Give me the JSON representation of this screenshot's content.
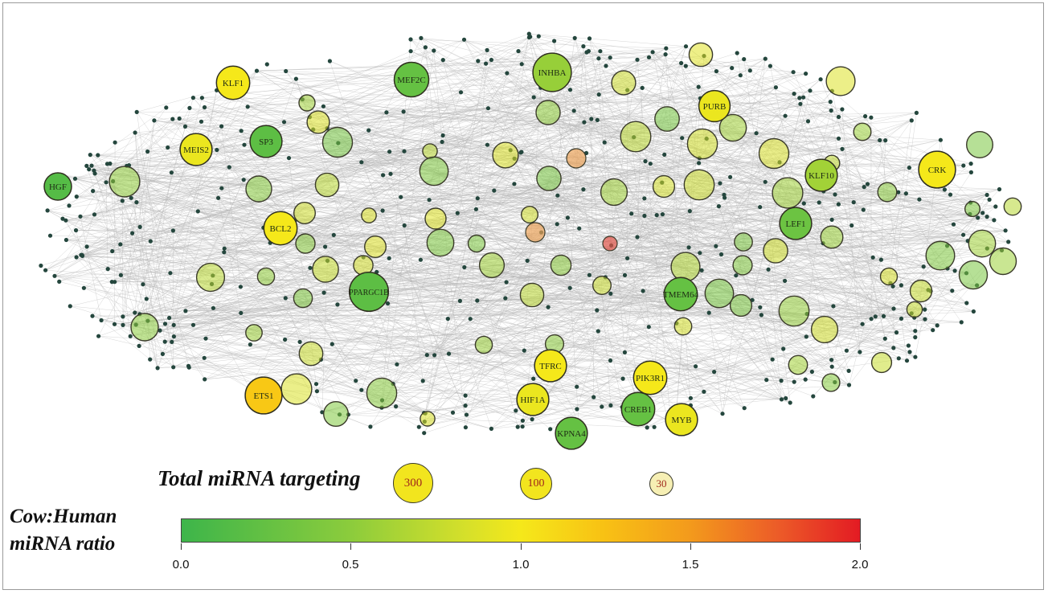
{
  "colors": {
    "edge": "#b4b4b4",
    "small_node": "#24463d",
    "scale_low": "#3db54a",
    "scale_mid": "#f5e81a",
    "scale_high": "#e31b23"
  },
  "labeled_nodes": [
    {
      "label": "HGF",
      "ratio": 0.15,
      "targets": 90
    },
    {
      "label": "KLF1",
      "ratio": 1.0,
      "targets": 170
    },
    {
      "label": "MEF2C",
      "ratio": 0.25,
      "targets": 190
    },
    {
      "label": "INHBA",
      "ratio": 0.55,
      "targets": 260
    },
    {
      "label": "SP3",
      "ratio": 0.2,
      "targets": 150
    },
    {
      "label": "MEIS2",
      "ratio": 0.95,
      "targets": 150
    },
    {
      "label": "PURB",
      "ratio": 0.95,
      "targets": 140
    },
    {
      "label": "KLF10",
      "ratio": 0.6,
      "targets": 150
    },
    {
      "label": "CRK",
      "ratio": 1.0,
      "targets": 230
    },
    {
      "label": "BCL2",
      "ratio": 1.0,
      "targets": 170
    },
    {
      "label": "LEF1",
      "ratio": 0.3,
      "targets": 150
    },
    {
      "label": "PPARGC1B",
      "ratio": 0.2,
      "targets": 270
    },
    {
      "label": "TMEM64",
      "ratio": 0.25,
      "targets": 170
    },
    {
      "label": "TFRC",
      "ratio": 1.0,
      "targets": 150
    },
    {
      "label": "PIK3R1",
      "ratio": 1.0,
      "targets": 170
    },
    {
      "label": "HIF1A",
      "ratio": 0.95,
      "targets": 150
    },
    {
      "label": "CREB1",
      "ratio": 0.25,
      "targets": 170
    },
    {
      "label": "MYB",
      "ratio": 0.95,
      "targets": 150
    },
    {
      "label": "ETS1",
      "ratio": 1.2,
      "targets": 230
    },
    {
      "label": "KPNA4",
      "ratio": 0.25,
      "targets": 150
    }
  ],
  "legend": {
    "size_title": "Total miRNA targeting",
    "size_keys": [
      {
        "label": "300",
        "targets": 300
      },
      {
        "label": "100",
        "targets": 100
      },
      {
        "label": "30",
        "targets": 30
      }
    ],
    "color_title_line1": "Cow:Human",
    "color_title_line2": "miRNA ratio",
    "color_ticks": [
      "0.0",
      "0.5",
      "1.0",
      "1.5",
      "2.0"
    ],
    "color_range": [
      0,
      2
    ]
  }
}
